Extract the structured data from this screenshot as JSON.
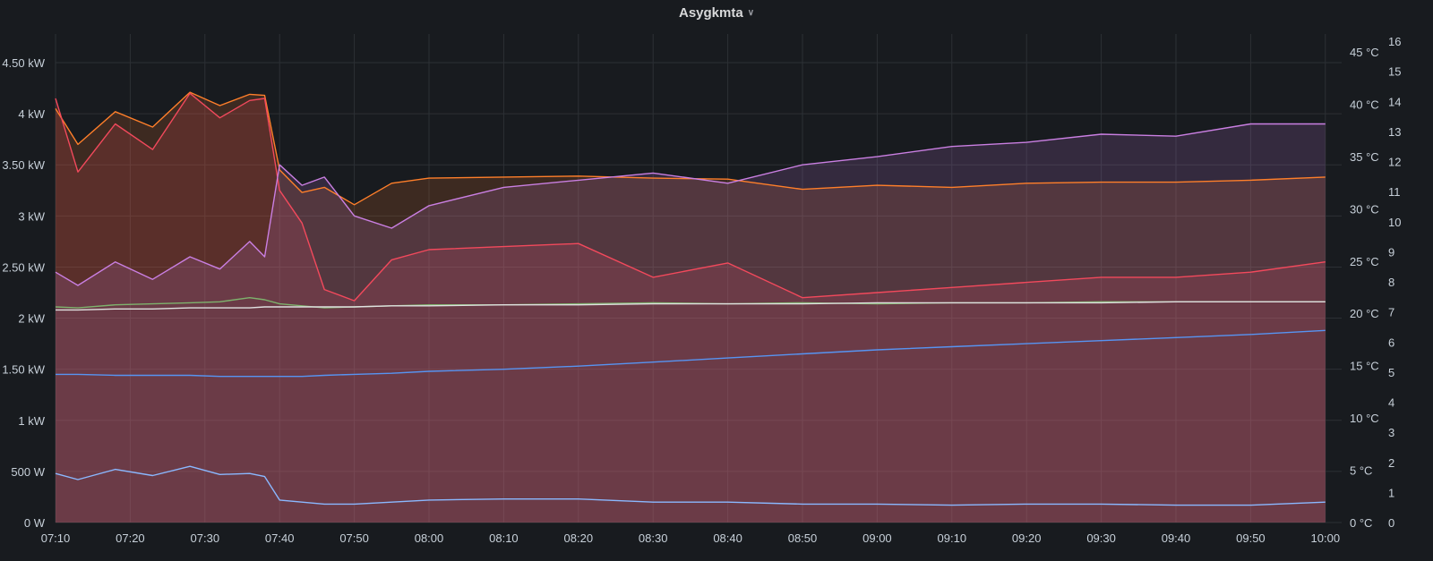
{
  "panel": {
    "title": "Asygkmta",
    "menu_chevron": "chevron-down-icon"
  },
  "chart_data": {
    "type": "line",
    "title": "Asygkmta",
    "x_ticks": [
      "07:10",
      "07:20",
      "07:30",
      "07:40",
      "07:50",
      "08:00",
      "08:10",
      "08:20",
      "08:30",
      "08:40",
      "08:50",
      "09:00",
      "09:10",
      "09:20",
      "09:30",
      "09:40",
      "09:50",
      "10:00"
    ],
    "y_left": {
      "unit": "W",
      "range": [
        0,
        4500
      ],
      "tick_values": [
        0,
        500,
        1000,
        1500,
        2000,
        2500,
        3000,
        3500,
        4000,
        4500
      ],
      "tick_labels": [
        "0 W",
        "500 W",
        "1 kW",
        "1.50 kW",
        "2 kW",
        "2.50 kW",
        "3 kW",
        "3.50 kW",
        "4 kW",
        "4.50 kW"
      ]
    },
    "y_right1": {
      "unit": "°C",
      "range": [
        0,
        45
      ],
      "tick_values": [
        0,
        5,
        10,
        15,
        20,
        25,
        30,
        35,
        40,
        45
      ],
      "tick_labels": [
        "0 °C",
        "5 °C",
        "10 °C",
        "15 °C",
        "20 °C",
        "25 °C",
        "30 °C",
        "35 °C",
        "40 °C",
        "45 °C"
      ]
    },
    "y_right2": {
      "range": [
        0,
        16
      ],
      "tick_labels": [
        "0",
        "1",
        "2",
        "3",
        "4",
        "5",
        "6",
        "7",
        "8",
        "9",
        "10",
        "11",
        "12",
        "13",
        "14",
        "15",
        "16"
      ]
    },
    "grid": true,
    "legend": "none",
    "x_minutes": [
      0,
      3,
      8,
      13,
      18,
      22,
      26,
      28,
      30,
      33,
      36,
      40,
      45,
      50,
      60,
      70,
      80,
      90,
      100,
      110,
      120,
      130,
      140,
      150,
      160,
      170
    ],
    "series": [
      {
        "axis": "left",
        "color": "#ff7f2a",
        "fill": true,
        "values": [
          4050,
          3700,
          4020,
          3870,
          4210,
          4080,
          4190,
          4180,
          3450,
          3230,
          3280,
          3110,
          3320,
          3370,
          3380,
          3390,
          3370,
          3360,
          3260,
          3300,
          3280,
          3320,
          3330,
          3330,
          3350,
          3380
        ]
      },
      {
        "axis": "left",
        "color": "#f2495c",
        "fill": true,
        "values": [
          4150,
          3430,
          3900,
          3650,
          4200,
          3960,
          4130,
          4150,
          3250,
          2930,
          2280,
          2170,
          2570,
          2670,
          2700,
          2730,
          2400,
          2540,
          2200,
          2250,
          2300,
          2350,
          2400,
          2400,
          2450,
          2550
        ]
      },
      {
        "axis": "left",
        "color": "#ca7fe2",
        "fill": true,
        "values": [
          2450,
          2320,
          2550,
          2380,
          2600,
          2480,
          2750,
          2600,
          3500,
          3300,
          3380,
          3000,
          2880,
          3100,
          3280,
          3350,
          3420,
          3320,
          3500,
          3580,
          3680,
          3720,
          3800,
          3780,
          3900,
          3900
        ]
      },
      {
        "axis": "left",
        "color": "#7eb26d",
        "fill": false,
        "values": [
          2110,
          2100,
          2130,
          2140,
          2150,
          2160,
          2200,
          2180,
          2140,
          2120,
          2100,
          2110,
          2120,
          2130,
          2130,
          2140,
          2150,
          2140,
          2150,
          2140,
          2150,
          2150,
          2160,
          2160,
          2160,
          2160
        ]
      },
      {
        "axis": "left",
        "color": "#e0e0e0",
        "fill": false,
        "values": [
          2080,
          2080,
          2090,
          2090,
          2100,
          2100,
          2100,
          2110,
          2110,
          2110,
          2110,
          2110,
          2120,
          2120,
          2130,
          2130,
          2140,
          2140,
          2140,
          2150,
          2150,
          2150,
          2150,
          2160,
          2160,
          2160
        ]
      },
      {
        "axis": "left",
        "color": "#5794f2",
        "fill": false,
        "values": [
          1450,
          1450,
          1440,
          1440,
          1440,
          1430,
          1430,
          1430,
          1430,
          1430,
          1440,
          1450,
          1460,
          1480,
          1500,
          1530,
          1570,
          1610,
          1650,
          1690,
          1720,
          1750,
          1780,
          1810,
          1840,
          1880
        ]
      },
      {
        "axis": "left",
        "color": "#8ab8ff",
        "fill": false,
        "values": [
          480,
          420,
          520,
          460,
          550,
          470,
          480,
          450,
          220,
          200,
          180,
          180,
          200,
          220,
          230,
          230,
          200,
          200,
          180,
          180,
          170,
          180,
          180,
          170,
          170,
          200
        ]
      }
    ]
  }
}
